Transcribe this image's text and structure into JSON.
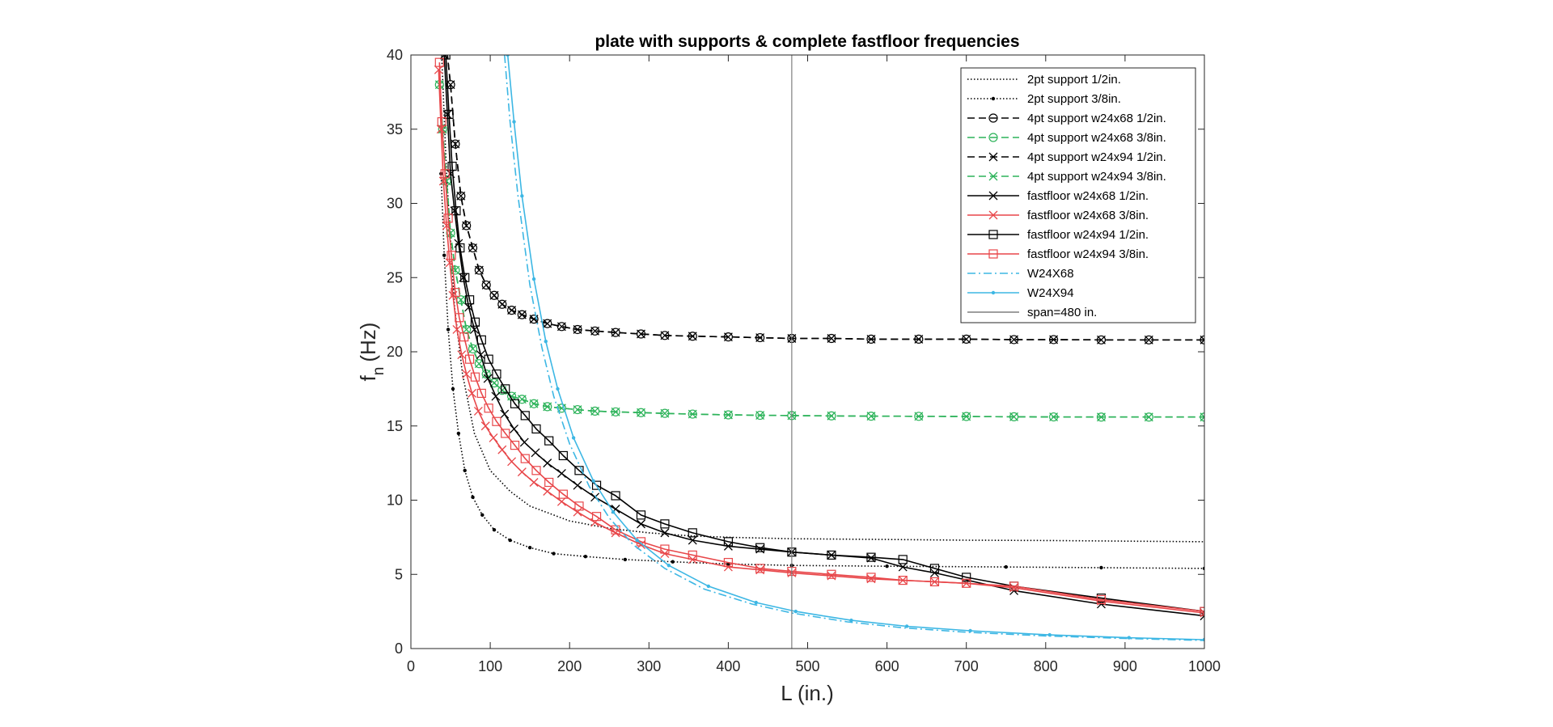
{
  "chart_data": {
    "type": "line",
    "title": "plate with supports & complete fastfloor frequencies",
    "xlabel": "L (in.)",
    "ylabel_main": "f",
    "ylabel_sub": "n",
    "ylabel_unit": "(Hz)",
    "xlim": [
      0,
      1000
    ],
    "ylim": [
      0,
      40
    ],
    "xticks": [
      0,
      100,
      200,
      300,
      400,
      500,
      600,
      700,
      800,
      900,
      1000
    ],
    "yticks": [
      0,
      5,
      10,
      15,
      20,
      25,
      30,
      35,
      40
    ],
    "grid": false,
    "legend_position": "top-right",
    "vline": {
      "x": 480,
      "name": "span=480 in.",
      "color": "#7f7f7f"
    },
    "series": [
      {
        "name": "2pt support 1/2in.",
        "color": "#000000",
        "dash": "dotted",
        "marker": "none",
        "x": [
          38,
          45,
          55,
          65,
          80,
          100,
          125,
          150,
          200,
          250,
          300,
          350,
          400,
          480,
          600,
          700,
          800,
          1000
        ],
        "y": [
          41,
          32,
          23,
          18.5,
          14.5,
          12.0,
          10.6,
          9.6,
          8.6,
          8.1,
          7.8,
          7.6,
          7.5,
          7.4,
          7.35,
          7.3,
          7.28,
          7.2
        ]
      },
      {
        "name": "2pt support 3/8in.",
        "color": "#000000",
        "dash": "dotted",
        "marker": "dot",
        "x": [
          38,
          42,
          47,
          53,
          60,
          68,
          78,
          90,
          105,
          125,
          150,
          180,
          220,
          270,
          330,
          400,
          480,
          600,
          750,
          870,
          1000
        ],
        "y": [
          32,
          26.5,
          21.5,
          17.5,
          14.5,
          12.0,
          10.2,
          9.0,
          8.0,
          7.3,
          6.8,
          6.4,
          6.2,
          6.0,
          5.85,
          5.7,
          5.6,
          5.55,
          5.5,
          5.45,
          5.4
        ]
      },
      {
        "name": "4pt support w24x68 1/2in.",
        "color": "#000000",
        "dash": "dashed",
        "marker": "circle",
        "x": [
          44,
          50,
          56,
          63,
          70,
          78,
          86,
          95,
          105,
          115,
          127,
          140,
          155,
          172,
          190,
          210,
          232,
          258,
          290,
          320,
          355,
          400,
          440,
          480,
          530,
          580,
          640,
          700,
          760,
          810,
          870,
          930,
          1000
        ],
        "y": [
          41,
          38,
          34,
          30.5,
          28.5,
          27,
          25.5,
          24.5,
          23.8,
          23.2,
          22.8,
          22.5,
          22.2,
          21.9,
          21.7,
          21.5,
          21.4,
          21.3,
          21.2,
          21.1,
          21.05,
          21.0,
          20.95,
          20.9,
          20.9,
          20.85,
          20.85,
          20.85,
          20.82,
          20.82,
          20.8,
          20.8,
          20.8
        ]
      },
      {
        "name": "4pt support w24x68 3/8in.",
        "color": "#2db35a",
        "dash": "dashed",
        "marker": "circle",
        "x": [
          36,
          40,
          45,
          50,
          56,
          63,
          70,
          78,
          86,
          95,
          105,
          115,
          127,
          140,
          155,
          172,
          190,
          210,
          232,
          258,
          290,
          320,
          355,
          400,
          440,
          480,
          530,
          580,
          640,
          700,
          760,
          810,
          870,
          930,
          1000
        ],
        "y": [
          38,
          35,
          31.5,
          28,
          25.5,
          23.5,
          21.5,
          20.2,
          19.2,
          18.5,
          17.9,
          17.4,
          17.0,
          16.8,
          16.5,
          16.3,
          16.2,
          16.1,
          16.0,
          15.95,
          15.9,
          15.85,
          15.8,
          15.75,
          15.72,
          15.7,
          15.68,
          15.66,
          15.65,
          15.64,
          15.62,
          15.61,
          15.6,
          15.6,
          15.6
        ]
      },
      {
        "name": "4pt support w24x94 1/2in.",
        "color": "#000000",
        "dash": "dashed",
        "marker": "x",
        "x": [
          44,
          50,
          56,
          63,
          70,
          78,
          86,
          95,
          105,
          115,
          127,
          140,
          155,
          172,
          190,
          210,
          232,
          258,
          290,
          320,
          355,
          400,
          440,
          480,
          530,
          580,
          640,
          700,
          760,
          810,
          870,
          930,
          1000
        ],
        "y": [
          41,
          38,
          34,
          30.5,
          28.5,
          27,
          25.5,
          24.5,
          23.8,
          23.2,
          22.8,
          22.5,
          22.2,
          21.9,
          21.7,
          21.5,
          21.4,
          21.3,
          21.2,
          21.1,
          21.05,
          21.0,
          20.95,
          20.9,
          20.9,
          20.85,
          20.85,
          20.85,
          20.82,
          20.82,
          20.8,
          20.8,
          20.8
        ]
      },
      {
        "name": "4pt support w24x94 3/8in.",
        "color": "#2db35a",
        "dash": "dashed",
        "marker": "x",
        "x": [
          36,
          40,
          45,
          50,
          56,
          63,
          70,
          78,
          86,
          95,
          105,
          115,
          127,
          140,
          155,
          172,
          190,
          210,
          232,
          258,
          290,
          320,
          355,
          400,
          440,
          480,
          530,
          580,
          640,
          700,
          760,
          810,
          870,
          930,
          1000
        ],
        "y": [
          38,
          35,
          31.5,
          28,
          25.5,
          23.5,
          21.5,
          20.2,
          19.2,
          18.5,
          17.9,
          17.4,
          17.0,
          16.8,
          16.5,
          16.3,
          16.2,
          16.1,
          16.0,
          15.95,
          15.9,
          15.85,
          15.8,
          15.75,
          15.72,
          15.7,
          15.68,
          15.66,
          15.65,
          15.64,
          15.62,
          15.61,
          15.6,
          15.6,
          15.6
        ]
      },
      {
        "name": "fastfloor w24x68 1/2in.",
        "color": "#000000",
        "dash": "solid",
        "marker": "x",
        "x": [
          42,
          46,
          50,
          55,
          60,
          66,
          73,
          80,
          88,
          97,
          107,
          118,
          130,
          143,
          157,
          172,
          190,
          210,
          232,
          258,
          290,
          320,
          355,
          400,
          440,
          480,
          530,
          580,
          620,
          660,
          760,
          870,
          1000
        ],
        "y": [
          40,
          36,
          32,
          29.5,
          27.3,
          25.0,
          23.0,
          21.5,
          19.8,
          18.2,
          17.0,
          15.8,
          14.8,
          13.9,
          13.2,
          12.5,
          11.8,
          11.0,
          10.2,
          9.4,
          8.4,
          7.8,
          7.3,
          6.9,
          6.7,
          6.5,
          6.3,
          6.1,
          5.5,
          5.1,
          3.9,
          3.0,
          2.2
        ]
      },
      {
        "name": "fastfloor w24x68 3/8in.",
        "color": "#e8474a",
        "dash": "solid",
        "marker": "x",
        "x": [
          35,
          38,
          41,
          45,
          49,
          53,
          58,
          64,
          70,
          77,
          85,
          94,
          104,
          115,
          127,
          140,
          155,
          172,
          190,
          210,
          232,
          258,
          290,
          320,
          355,
          400,
          440,
          480,
          530,
          580,
          620,
          660,
          700,
          760,
          870,
          1000
        ],
        "y": [
          39,
          35,
          31.5,
          28.5,
          26,
          23.8,
          21.5,
          19.8,
          18.5,
          17.2,
          16.0,
          15.0,
          14.2,
          13.4,
          12.6,
          11.9,
          11.2,
          10.6,
          9.9,
          9.2,
          8.5,
          7.8,
          7.0,
          6.4,
          6.0,
          5.5,
          5.3,
          5.1,
          4.9,
          4.7,
          4.6,
          4.5,
          4.4,
          4.1,
          3.2,
          2.4
        ]
      },
      {
        "name": "fastfloor w24x94 1/2in.",
        "color": "#000000",
        "dash": "solid",
        "marker": "square",
        "x": [
          44,
          48,
          52,
          57,
          62,
          68,
          74,
          81,
          89,
          98,
          108,
          119,
          131,
          144,
          158,
          174,
          192,
          212,
          234,
          258,
          290,
          320,
          355,
          400,
          440,
          480,
          530,
          580,
          620,
          660,
          700,
          760,
          870,
          1000
        ],
        "y": [
          40,
          36,
          32.5,
          29.5,
          27.0,
          25.0,
          23.5,
          22.0,
          20.8,
          19.5,
          18.5,
          17.5,
          16.5,
          15.7,
          14.8,
          14.0,
          13.0,
          12.0,
          11.0,
          10.3,
          9.0,
          8.4,
          7.8,
          7.2,
          6.8,
          6.5,
          6.3,
          6.15,
          6.0,
          5.4,
          4.8,
          4.2,
          3.4,
          2.5
        ]
      },
      {
        "name": "fastfloor w24x94 3/8in.",
        "color": "#e8474a",
        "dash": "solid",
        "marker": "square",
        "x": [
          36,
          39,
          43,
          47,
          51,
          56,
          61,
          67,
          74,
          81,
          89,
          98,
          108,
          119,
          131,
          144,
          158,
          174,
          192,
          212,
          234,
          258,
          290,
          320,
          355,
          400,
          440,
          480,
          530,
          580,
          620,
          660,
          700,
          760,
          870,
          1000
        ],
        "y": [
          39.5,
          35.5,
          32,
          29,
          26.5,
          24,
          22.3,
          21,
          19.5,
          18.3,
          17.2,
          16.2,
          15.3,
          14.5,
          13.7,
          12.8,
          12.0,
          11.2,
          10.4,
          9.6,
          8.9,
          8.0,
          7.2,
          6.7,
          6.3,
          5.8,
          5.4,
          5.2,
          5.0,
          4.8,
          4.6,
          4.5,
          4.4,
          4.2,
          3.3,
          2.5
        ]
      },
      {
        "name": "W24X68",
        "color": "#3db7e4",
        "dash": "dashdot",
        "marker": "none",
        "x": [
          118,
          125,
          135,
          150,
          165,
          180,
          200,
          225,
          250,
          280,
          320,
          370,
          430,
          480,
          550,
          620,
          700,
          800,
          900,
          1000
        ],
        "y": [
          40,
          35.5,
          30.5,
          24.5,
          20.3,
          17.0,
          13.8,
          10.9,
          8.8,
          7.0,
          5.4,
          4.0,
          3.0,
          2.4,
          1.8,
          1.4,
          1.1,
          0.85,
          0.68,
          0.55
        ]
      },
      {
        "name": "W24X94",
        "color": "#3db7e4",
        "dash": "solid",
        "marker": "dot",
        "x": [
          122,
          130,
          140,
          155,
          170,
          185,
          205,
          230,
          255,
          285,
          325,
          375,
          435,
          485,
          555,
          625,
          705,
          805,
          905,
          1000
        ],
        "y": [
          40,
          35.5,
          30.5,
          24.9,
          20.7,
          17.5,
          14.2,
          11.3,
          9.2,
          7.3,
          5.6,
          4.2,
          3.1,
          2.5,
          1.9,
          1.5,
          1.2,
          0.92,
          0.73,
          0.6
        ]
      }
    ]
  }
}
